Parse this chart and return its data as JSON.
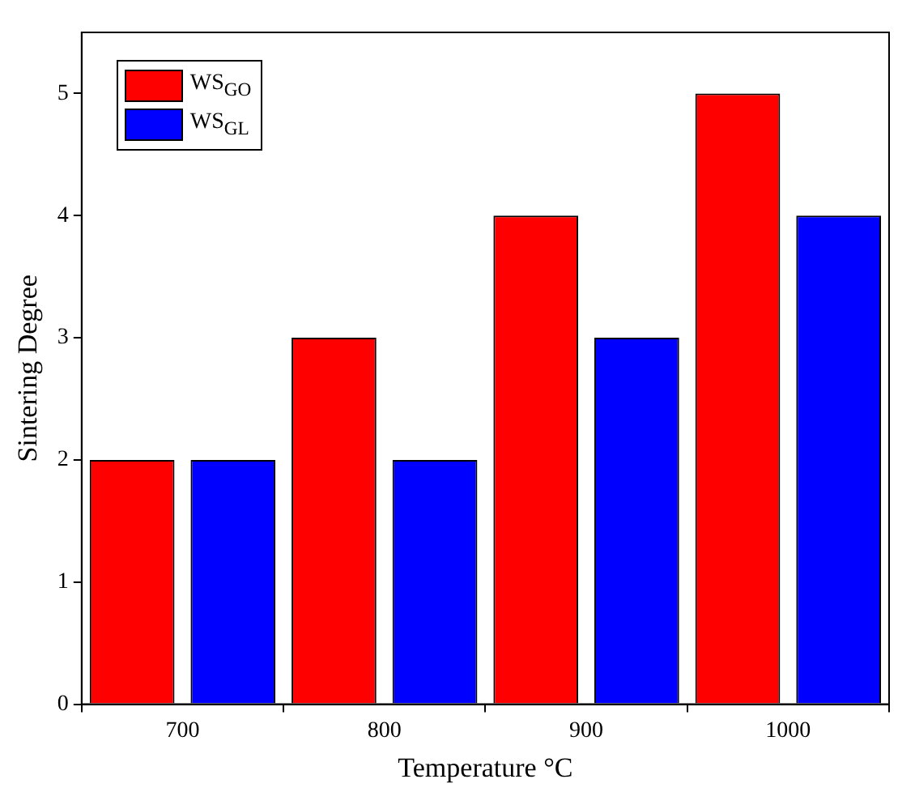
{
  "chart_data": {
    "type": "bar",
    "xlabel": "Temperature °C",
    "ylabel": "Sintering Degree",
    "categories": [
      "700",
      "800",
      "900",
      "1000"
    ],
    "series": [
      {
        "name": "WS$_{GO}$",
        "color": "#ff0000",
        "values": [
          2,
          3,
          4,
          5
        ]
      },
      {
        "name": "WS$_{GL}$",
        "color": "#0000ff",
        "values": [
          2,
          2,
          3,
          4
        ]
      }
    ],
    "ylim": [
      0,
      5.5
    ],
    "yticks": [
      0,
      1,
      2,
      3,
      4,
      5
    ],
    "grid": false,
    "legend": "top left"
  }
}
